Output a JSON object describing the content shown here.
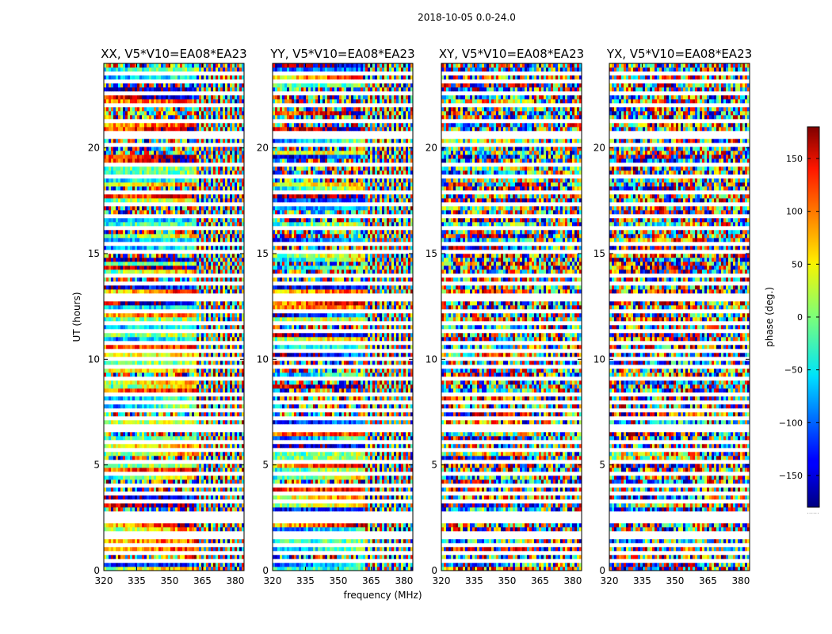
{
  "chart_data": {
    "type": "heatmap",
    "suptitle": "2018-10-05 0.0-24.0",
    "xlabel": "frequency (MHz)",
    "ylabel": "UT (hours)",
    "xlim": [
      320,
      384
    ],
    "ylim": [
      0,
      24
    ],
    "xticks": [
      320,
      335,
      350,
      365,
      380
    ],
    "yticks": [
      0,
      5,
      10,
      15,
      20
    ],
    "panels": [
      {
        "title": "XX, V5*V10=EA08*EA23",
        "polarization": "XX"
      },
      {
        "title": "YY, V5*V10=EA08*EA23",
        "polarization": "YY"
      },
      {
        "title": "XY, V5*V10=EA08*EA23",
        "polarization": "XY"
      },
      {
        "title": "YX, V5*V10=EA08*EA23",
        "polarization": "YX"
      }
    ],
    "colorbar": {
      "label": "phase (deg.)",
      "range": [
        -180,
        180
      ],
      "ticks": [
        -150,
        -100,
        -50,
        0,
        50,
        100,
        150
      ],
      "colormap": "jet",
      "footer": "......"
    },
    "flagged_ut_hours": [
      0.5,
      0.8,
      1.3,
      1.55,
      1.85,
      2.3,
      2.55,
      2.75,
      3.3,
      3.6,
      4.1,
      4.65,
      5.1,
      5.65,
      6.1,
      6.6,
      6.9,
      7.2,
      7.5,
      7.9,
      8.4,
      9.0,
      9.6,
      10.1,
      10.4,
      10.7,
      11.3,
      11.8,
      12.3,
      12.75,
      13.0,
      13.5,
      14.0,
      15.0,
      15.5,
      16.2,
      16.8,
      17.4,
      17.85,
      18.6,
      19.2,
      20.1,
      20.45,
      20.75,
      21.3,
      21.95,
      22.6,
      23.1,
      23.5
    ]
  },
  "colors": {
    "flag": "#ffffff",
    "axes": "#000000",
    "background": "#ffffff"
  }
}
